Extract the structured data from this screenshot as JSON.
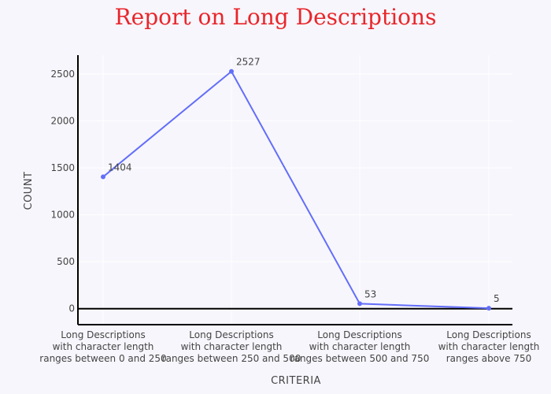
{
  "chart_data": {
    "type": "line",
    "title": "Report on Long Descriptions",
    "xlabel": "CRITERIA",
    "ylabel": "COUNT",
    "categories": [
      [
        "Long Descriptions",
        "with character length",
        "ranges between 0 and 250"
      ],
      [
        "Long Descriptions",
        "with character length",
        "ranges between 250 and 500"
      ],
      [
        "Long Descriptions",
        "with character length",
        "ranges between 500 and 750"
      ],
      [
        "Long Descriptions",
        "with character length",
        "ranges above 750"
      ]
    ],
    "values": [
      1404,
      2527,
      53,
      5
    ],
    "data_labels": [
      "1404",
      "2527",
      "53",
      "5"
    ],
    "y_ticks": [
      0,
      500,
      1000,
      1500,
      2000,
      2500
    ],
    "ylim": [
      -170,
      2700
    ],
    "grid": true,
    "line_color": "#636efa",
    "title_color": "#e8262b",
    "background_color": "#f7f6fc"
  }
}
